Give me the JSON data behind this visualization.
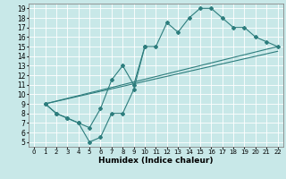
{
  "xlabel": "Humidex (Indice chaleur)",
  "xlim": [
    -0.5,
    22.5
  ],
  "ylim": [
    4.5,
    19.5
  ],
  "xticks": [
    0,
    1,
    2,
    3,
    4,
    5,
    6,
    7,
    8,
    9,
    10,
    11,
    12,
    13,
    14,
    15,
    16,
    17,
    18,
    19,
    20,
    21,
    22
  ],
  "yticks": [
    5,
    6,
    7,
    8,
    9,
    10,
    11,
    12,
    13,
    14,
    15,
    16,
    17,
    18,
    19
  ],
  "background_color": "#c8e8e8",
  "grid_color": "#ffffff",
  "line_color": "#2d7d7d",
  "series": [
    {
      "x": [
        1,
        2,
        3,
        4,
        5,
        6,
        7,
        8,
        9,
        10,
        11,
        12,
        13,
        14,
        15,
        16,
        17,
        18,
        19,
        20,
        21,
        22
      ],
      "y": [
        9,
        8,
        7.5,
        7,
        6.5,
        8.5,
        11.5,
        13,
        11,
        15,
        15,
        17.5,
        16.5,
        18,
        19,
        19,
        18,
        17,
        17,
        16,
        15.5,
        15
      ],
      "has_markers": true
    },
    {
      "x": [
        1,
        2,
        3,
        4,
        5,
        6,
        7,
        8,
        9,
        10
      ],
      "y": [
        9,
        8,
        7.5,
        7,
        5,
        5.5,
        8,
        8,
        10.5,
        15
      ],
      "has_markers": true
    },
    {
      "x": [
        1,
        22
      ],
      "y": [
        9,
        15
      ],
      "has_markers": false
    },
    {
      "x": [
        1,
        22
      ],
      "y": [
        9,
        14.5
      ],
      "has_markers": false
    }
  ],
  "figsize": [
    3.2,
    2.0
  ],
  "dpi": 100
}
